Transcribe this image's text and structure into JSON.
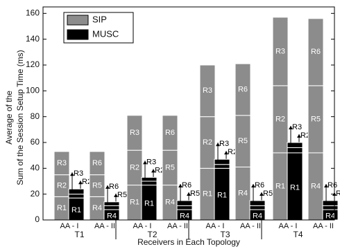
{
  "chart_data": {
    "type": "stacked-bar",
    "ylabel": [
      "Average of the",
      "Sum of the Session Setup Time (ms)"
    ],
    "xlabel": "Receivers in Each Topology",
    "groups": [
      "T1",
      "T2",
      "T3",
      "T4"
    ],
    "categories": [
      "AA - I",
      "AA - II",
      "AA - I",
      "AA - II",
      "AA - I",
      "AA - II",
      "AA - I",
      "AA - II"
    ],
    "segment_labels": [
      [
        "R1",
        "R2",
        "R3"
      ],
      [
        "R4",
        "R5",
        "R6"
      ],
      [
        "R1",
        "R2",
        "R3"
      ],
      [
        "R4",
        "R5",
        "R6"
      ],
      [
        "R1",
        "R2",
        "R3"
      ],
      [
        "R4",
        "R5",
        "R6"
      ],
      [
        "R1",
        "R2",
        "R3"
      ],
      [
        "R4",
        "R5",
        "R6"
      ]
    ],
    "series": [
      {
        "name": "SIP",
        "color": "#8c8c8c",
        "values": [
          [
            18,
            17,
            18
          ],
          [
            18,
            17,
            18
          ],
          [
            27,
            27,
            27
          ],
          [
            27,
            27,
            27
          ],
          [
            40,
            40,
            40
          ],
          [
            41,
            40,
            40
          ],
          [
            52,
            52,
            53
          ],
          [
            52,
            52,
            52
          ]
        ]
      },
      {
        "name": "MUSC",
        "color": "#000000",
        "values": [
          [
            17,
            3,
            4
          ],
          [
            8,
            3,
            3
          ],
          [
            27,
            3,
            3
          ],
          [
            8,
            3,
            4
          ],
          [
            40,
            3,
            4
          ],
          [
            8,
            3,
            4
          ],
          [
            52,
            4,
            4
          ],
          [
            8,
            3,
            4
          ]
        ]
      }
    ],
    "ylim": [
      0,
      165
    ],
    "yticks": [
      0,
      20,
      40,
      60,
      80,
      100,
      120,
      140,
      160
    ],
    "legend": "top-left"
  }
}
